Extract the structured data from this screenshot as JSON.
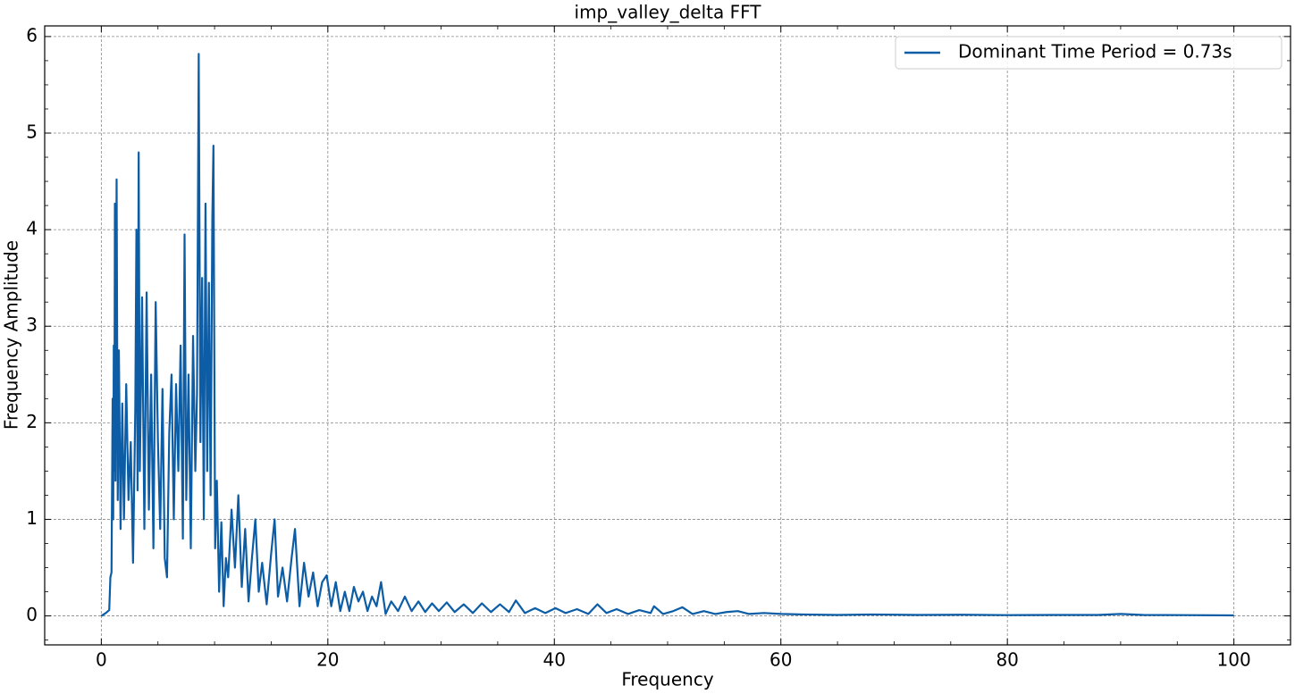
{
  "chart_data": {
    "type": "line",
    "title": "imp_valley_delta FFT",
    "x_label": "Frequency",
    "y_label": "Frequency Amplitude",
    "xlim": [
      -5,
      105
    ],
    "ylim": [
      -0.3,
      6.11
    ],
    "xticks": [
      0,
      20,
      40,
      60,
      80,
      100
    ],
    "yticks": [
      0,
      1,
      2,
      3,
      4,
      5,
      6
    ],
    "xminorticks": [
      5,
      10,
      15,
      25,
      30,
      35,
      45,
      50,
      55,
      65,
      70,
      75,
      85,
      90,
      95,
      105
    ],
    "yminorticks": [
      -0.25,
      0.25,
      0.5,
      0.75,
      1.25,
      1.5,
      1.75,
      2.25,
      2.5,
      2.75,
      3.25,
      3.5,
      3.75,
      4.25,
      4.5,
      4.75,
      5.25,
      5.5,
      5.75
    ],
    "grid": true,
    "legend_position": "upper-right",
    "series": [
      {
        "name": "Dominant Time Period = 0.73s",
        "color": "#0C5DA5",
        "x": [
          0,
          0.4,
          0.7,
          0.8,
          0.9,
          1.0,
          1.05,
          1.1,
          1.15,
          1.2,
          1.25,
          1.35,
          1.45,
          1.55,
          1.7,
          1.85,
          2.0,
          2.2,
          2.4,
          2.6,
          2.8,
          3.0,
          3.1,
          3.2,
          3.3,
          3.4,
          3.6,
          3.8,
          4.0,
          4.2,
          4.4,
          4.6,
          4.8,
          5.0,
          5.2,
          5.4,
          5.6,
          5.8,
          6.0,
          6.2,
          6.4,
          6.6,
          6.8,
          7.0,
          7.2,
          7.35,
          7.5,
          7.7,
          7.9,
          8.1,
          8.3,
          8.45,
          8.6,
          8.75,
          8.9,
          9.05,
          9.2,
          9.35,
          9.5,
          9.65,
          9.8,
          9.9,
          10.05,
          10.2,
          10.4,
          10.6,
          10.8,
          11.0,
          11.2,
          11.5,
          11.8,
          12.1,
          12.4,
          12.7,
          13.0,
          13.3,
          13.6,
          13.9,
          14.2,
          14.6,
          15.0,
          15.3,
          15.6,
          16.0,
          16.4,
          16.8,
          17.1,
          17.5,
          17.9,
          18.3,
          18.7,
          19.1,
          19.5,
          19.9,
          20.3,
          20.7,
          21.1,
          21.5,
          21.9,
          22.3,
          22.7,
          23.1,
          23.5,
          23.9,
          24.3,
          24.7,
          25.1,
          25.6,
          26.2,
          26.8,
          27.4,
          28,
          28.6,
          29.2,
          29.8,
          30.5,
          31.2,
          32,
          32.8,
          33.6,
          34.4,
          35.2,
          36,
          36.6,
          37.4,
          38.3,
          39.2,
          40.1,
          41,
          42,
          43,
          43.8,
          44.6,
          45.5,
          46.5,
          47.5,
          48.5,
          48.8,
          49.6,
          50.5,
          51.3,
          52.2,
          53.2,
          54.2,
          55.2,
          56.2,
          57.2,
          58.5,
          60,
          62,
          65,
          68,
          72,
          76,
          80,
          84,
          88,
          90,
          92,
          96,
          100
        ],
        "values": [
          0,
          0.03,
          0.06,
          0.4,
          0.45,
          2.25,
          1.0,
          2.8,
          1.5,
          4.27,
          1.4,
          4.52,
          1.2,
          2.75,
          0.9,
          2.2,
          1.0,
          2.4,
          1.2,
          1.8,
          0.55,
          2.15,
          4.0,
          1.3,
          4.8,
          1.5,
          3.3,
          0.9,
          3.35,
          1.1,
          2.5,
          0.7,
          3.25,
          1.8,
          0.9,
          2.35,
          0.6,
          0.4,
          1.9,
          2.5,
          1.0,
          2.4,
          1.5,
          2.8,
          0.8,
          3.95,
          1.2,
          2.5,
          0.7,
          2.9,
          1.5,
          2.3,
          5.82,
          1.8,
          3.5,
          1.0,
          4.27,
          1.5,
          3.45,
          1.25,
          4.1,
          4.87,
          0.7,
          1.4,
          0.25,
          0.97,
          0.1,
          0.6,
          0.4,
          1.1,
          0.5,
          1.25,
          0.3,
          0.9,
          0.15,
          0.6,
          1.0,
          0.25,
          0.55,
          0.12,
          0.65,
          1.0,
          0.2,
          0.5,
          0.15,
          0.6,
          0.9,
          0.1,
          0.55,
          0.2,
          0.45,
          0.1,
          0.35,
          0.42,
          0.1,
          0.35,
          0.05,
          0.25,
          0.05,
          0.3,
          0.15,
          0.25,
          0.05,
          0.2,
          0.1,
          0.35,
          0.02,
          0.15,
          0.05,
          0.2,
          0.05,
          0.15,
          0.04,
          0.13,
          0.05,
          0.14,
          0.04,
          0.12,
          0.03,
          0.13,
          0.04,
          0.12,
          0.04,
          0.16,
          0.03,
          0.08,
          0.03,
          0.08,
          0.03,
          0.07,
          0.02,
          0.12,
          0.03,
          0.07,
          0.02,
          0.06,
          0.03,
          0.1,
          0.02,
          0.05,
          0.09,
          0.02,
          0.05,
          0.02,
          0.04,
          0.05,
          0.02,
          0.03,
          0.02,
          0.015,
          0.01,
          0.015,
          0.01,
          0.012,
          0.008,
          0.01,
          0.01,
          0.02,
          0.01,
          0.008,
          0.005
        ]
      }
    ]
  }
}
